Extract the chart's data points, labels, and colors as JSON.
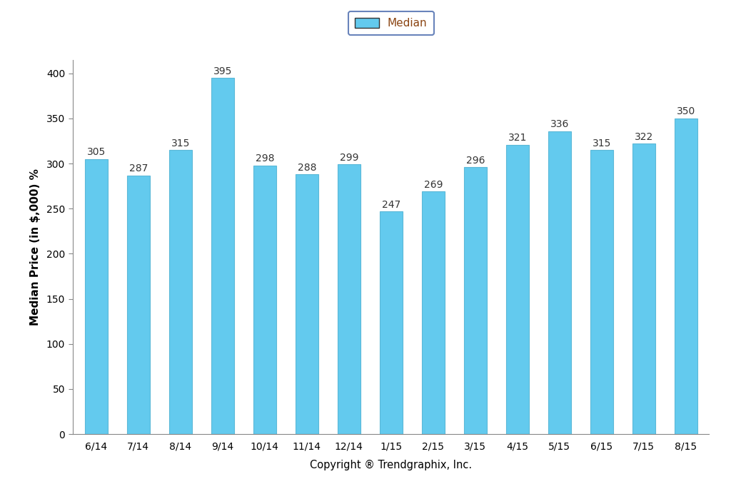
{
  "categories": [
    "6/14",
    "7/14",
    "8/14",
    "9/14",
    "10/14",
    "11/14",
    "12/14",
    "1/15",
    "2/15",
    "3/15",
    "4/15",
    "5/15",
    "6/15",
    "7/15",
    "8/15"
  ],
  "values": [
    305,
    287,
    315,
    395,
    298,
    288,
    299,
    247,
    269,
    296,
    321,
    336,
    315,
    322,
    350
  ],
  "bar_color": "#63CAEE",
  "bar_edge_color": "#5BB8D8",
  "ylabel": "Median Price (in $,000) %",
  "xlabel": "Copyright ® Trendgraphix, Inc.",
  "ylim": [
    0,
    415
  ],
  "yticks": [
    0,
    50,
    100,
    150,
    200,
    250,
    300,
    350,
    400
  ],
  "legend_label": "Median",
  "legend_edge_color": "#4466AA",
  "legend_text_color": "#8B4513",
  "label_fontsize": 11,
  "tick_fontsize": 10,
  "value_fontsize": 10,
  "bar_width": 0.55,
  "background_color": "#ffffff",
  "value_color": "#333333",
  "spine_color": "#888888",
  "ylabel_fontsize": 11,
  "xlabel_fontsize": 10.5
}
